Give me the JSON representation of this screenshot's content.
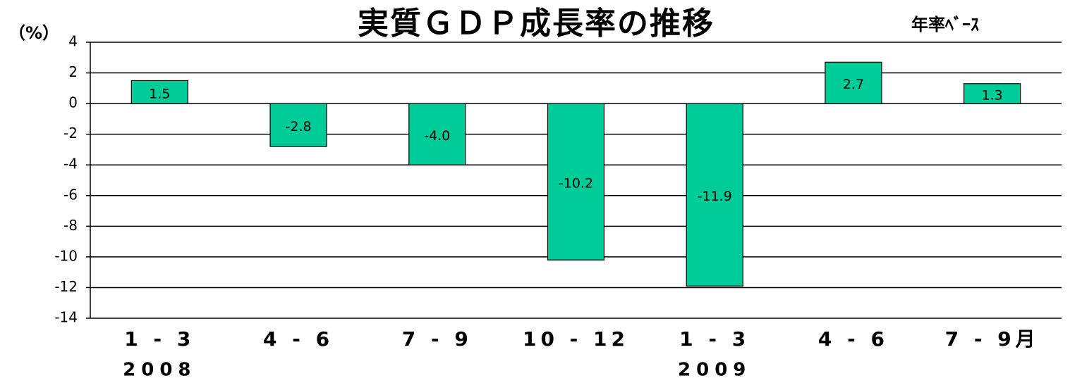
{
  "chart_data": {
    "type": "bar",
    "title": "実質ＧＤＰ成長率の推移",
    "subtitle": "年率ﾍﾞｰｽ",
    "y_label": "（%）",
    "categories": [
      "1 - 3",
      "4 - 6",
      "7 - 9",
      "10 - 12",
      "1 - 3",
      "4 - 6",
      "7 - 9月"
    ],
    "year_labels": [
      "2008",
      null,
      null,
      null,
      "2009",
      null,
      null
    ],
    "values": [
      1.5,
      -2.8,
      -4.0,
      -10.2,
      -11.9,
      2.7,
      1.3
    ],
    "value_labels": [
      "1.5",
      "-2.8",
      "-4.0",
      "-10.2",
      "-11.9",
      "2.7",
      "1.3"
    ],
    "color": "#00cc99",
    "ylim": [
      -14,
      4
    ],
    "yticks": [
      4,
      2,
      0,
      -2,
      -4,
      -6,
      -8,
      -10,
      -12,
      -14
    ],
    "grid": true
  }
}
